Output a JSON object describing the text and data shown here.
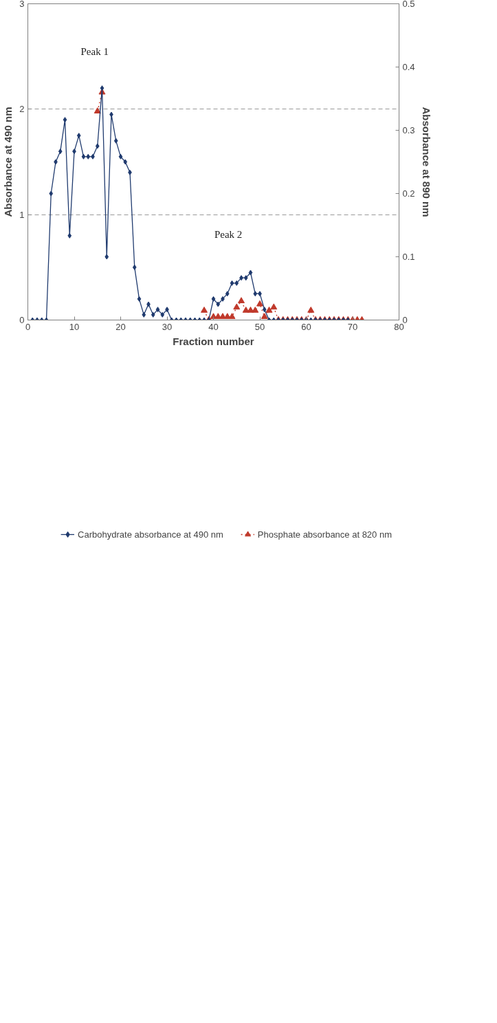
{
  "chart_data": {
    "type": "line",
    "xlabel": "Fraction number",
    "ylabel": "Absorbance at 490 nm",
    "y2label": "Absorbance at 890 nm",
    "xlim": [
      0,
      80
    ],
    "xticks": [
      0,
      10,
      20,
      30,
      40,
      50,
      60,
      70,
      80
    ],
    "ylim": [
      0,
      3
    ],
    "yticks": [
      0,
      1,
      2,
      3
    ],
    "y2lim": [
      0,
      0.5
    ],
    "y2ticks": [
      0,
      0.1,
      0.2,
      0.3,
      0.4,
      0.5
    ],
    "grid": "y",
    "legend": "bottom",
    "series": [
      {
        "name": "Carbohydrate absorbance at 490 nm",
        "color": "#1f3a6e",
        "marker": "diamond",
        "line_style": "solid",
        "x": [
          1,
          2,
          3,
          4,
          5,
          6,
          7,
          8,
          9,
          10,
          11,
          12,
          13,
          14,
          15,
          16,
          17,
          18,
          19,
          20,
          21,
          22,
          23,
          24,
          25,
          26,
          27,
          28,
          29,
          30,
          31,
          32,
          33,
          34,
          35,
          36,
          37,
          38,
          39,
          40,
          41,
          42,
          43,
          44,
          45,
          46,
          47,
          48,
          49,
          50,
          51,
          52,
          53,
          54,
          55,
          56,
          57,
          58,
          59,
          60,
          61,
          62,
          63,
          64,
          65,
          66,
          67,
          68,
          69
        ],
        "values": [
          0,
          0,
          0,
          0,
          1.2,
          1.5,
          1.6,
          1.9,
          0.8,
          1.6,
          1.75,
          1.55,
          1.55,
          1.55,
          1.65,
          2.2,
          0.6,
          1.95,
          1.7,
          1.55,
          1.5,
          1.4,
          0.5,
          0.2,
          0.05,
          0.15,
          0.05,
          0.1,
          0.05,
          0.1,
          0,
          0,
          0,
          0,
          0,
          0,
          0,
          0,
          0,
          0.2,
          0.15,
          0.2,
          0.25,
          0.35,
          0.35,
          0.4,
          0.4,
          0.45,
          0.25,
          0.25,
          0.1,
          0,
          0,
          0,
          0,
          0,
          0,
          0,
          0,
          0,
          0,
          0,
          0,
          0,
          0,
          0,
          0,
          0,
          0
        ]
      },
      {
        "name": "Phosphate absorbance at 820 nm",
        "color": "#c0392b",
        "marker": "triangle",
        "line_style": "dotted",
        "axis": "y2",
        "x": [
          15,
          16,
          17,
          38,
          39,
          40,
          41,
          42,
          43,
          44,
          45,
          46,
          47,
          48,
          49,
          50,
          51,
          52,
          53,
          54,
          55,
          56,
          57,
          58,
          59,
          60,
          61,
          62,
          63,
          64,
          65,
          66,
          67,
          68,
          69,
          70,
          71,
          72
        ],
        "values": [
          0.33,
          0.36,
          null,
          0.015,
          0,
          0.005,
          0.005,
          0.005,
          0.005,
          0.005,
          0.02,
          0.03,
          0.015,
          0.015,
          0.015,
          0.025,
          0.005,
          0.015,
          0.02,
          0,
          0,
          0,
          0,
          0,
          0,
          0,
          0.015,
          0,
          0,
          0,
          0,
          0,
          0,
          0,
          0,
          0,
          0,
          0
        ]
      }
    ],
    "annotations": [
      "Peak 1",
      "Peak 2"
    ]
  }
}
